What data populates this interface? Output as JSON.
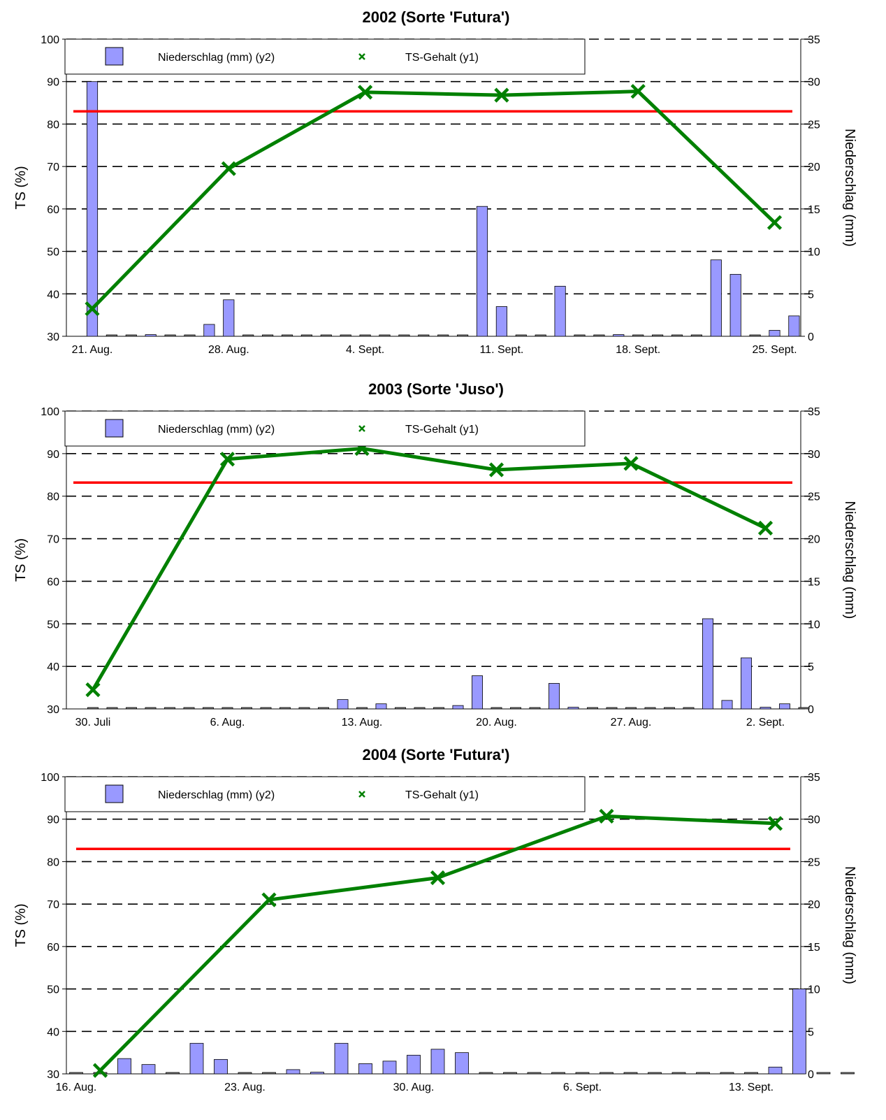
{
  "chart_data": [
    {
      "type": "bar+line",
      "title": "2002 (Sorte 'Futura')",
      "ylabel": "TS (%)",
      "y2label": "Niederschlag (mm)",
      "ylim": [
        30,
        100
      ],
      "y2lim": [
        0,
        35
      ],
      "yticks": [
        30,
        40,
        50,
        60,
        70,
        80,
        90,
        100
      ],
      "y2ticks": [
        0,
        5,
        10,
        15,
        20,
        25,
        30,
        35
      ],
      "grid": "dashed horizontal",
      "legend_position": "top",
      "legend": [
        "Niederschlag (mm) (y2)",
        "TS-Gehalt (y1)"
      ],
      "xticklabels": [
        {
          "label": "21. Aug.",
          "day": 0
        },
        {
          "label": "28. Aug.",
          "day": 7
        },
        {
          "label": "4. Sept.",
          "day": 14
        },
        {
          "label": "11. Sept.",
          "day": 21
        },
        {
          "label": "18. Sept.",
          "day": 28
        },
        {
          "label": "25. Sept.",
          "day": 35
        }
      ],
      "threshold": 83,
      "precipitation": [
        30,
        0,
        0,
        0.2,
        0,
        0,
        1.4,
        4.3,
        0,
        0,
        0,
        0,
        0,
        0,
        0,
        0,
        0,
        0,
        0,
        0,
        15.3,
        3.5,
        0,
        0,
        5.9,
        0,
        0,
        0.2,
        0,
        0,
        0,
        0,
        9,
        7.3,
        0,
        0.7,
        2.4
      ],
      "ts_gehalt": [
        {
          "day": 0,
          "value": 36.5
        },
        {
          "day": 7,
          "value": 69.5
        },
        {
          "day": 14,
          "value": 87.5
        },
        {
          "day": 21,
          "value": 86.8
        },
        {
          "day": 28,
          "value": 87.7
        },
        {
          "day": 35,
          "value": 56.8
        }
      ],
      "colors": {
        "bar": "#9999ff",
        "line": "#008000",
        "threshold": "#ff0000"
      }
    },
    {
      "type": "bar+line",
      "title": "2003 (Sorte 'Juso')",
      "ylabel": "TS (%)",
      "y2label": "Niederschlag (mm)",
      "ylim": [
        30,
        100
      ],
      "y2lim": [
        0,
        35
      ],
      "yticks": [
        30,
        40,
        50,
        60,
        70,
        80,
        90,
        100
      ],
      "y2ticks": [
        0,
        5,
        10,
        15,
        20,
        25,
        30,
        35
      ],
      "grid": "dashed horizontal",
      "legend_position": "top",
      "legend": [
        "Niederschlag (mm) (y2)",
        "TS-Gehalt (y1)"
      ],
      "xticklabels": [
        {
          "label": "30. Juli",
          "day": 0
        },
        {
          "label": "6. Aug.",
          "day": 7
        },
        {
          "label": "13. Aug.",
          "day": 14
        },
        {
          "label": "20. Aug.",
          "day": 21
        },
        {
          "label": "27. Aug.",
          "day": 28
        },
        {
          "label": "2. Sept.",
          "day": 35
        }
      ],
      "threshold": 83.2,
      "precipitation": [
        0,
        0,
        0,
        0,
        0,
        0,
        0,
        0,
        0,
        0,
        0,
        0,
        0,
        1.1,
        0,
        0.6,
        0,
        0,
        0,
        0.4,
        3.9,
        0,
        0,
        0,
        3,
        0.2,
        0,
        0,
        0,
        0,
        0,
        0,
        10.6,
        1,
        6,
        0.2,
        0.6,
        0
      ],
      "ts_gehalt": [
        {
          "day": 0,
          "value": 34.5
        },
        {
          "day": 7,
          "value": 88.7
        },
        {
          "day": 14,
          "value": 91.2
        },
        {
          "day": 21,
          "value": 86.2
        },
        {
          "day": 28,
          "value": 87.7
        },
        {
          "day": 35,
          "value": 72.5
        }
      ],
      "colors": {
        "bar": "#9999ff",
        "line": "#008000",
        "threshold": "#ff0000"
      }
    },
    {
      "type": "bar+line",
      "title": "2004 (Sorte 'Futura')",
      "ylabel": "TS (%)",
      "y2label": "Niederschlag (mm)",
      "ylim": [
        30,
        100
      ],
      "y2lim": [
        0,
        35
      ],
      "yticks": [
        30,
        40,
        50,
        60,
        70,
        80,
        90,
        100
      ],
      "y2ticks": [
        0,
        5,
        10,
        15,
        20,
        25,
        30,
        35
      ],
      "grid": "dashed horizontal",
      "legend_position": "top",
      "legend": [
        "Niederschlag (mm) (y2)",
        "TS-Gehalt (y1)"
      ],
      "xticklabels": [
        {
          "label": "16. Aug.",
          "day": 0
        },
        {
          "label": "23. Aug.",
          "day": 7
        },
        {
          "label": "30. Aug.",
          "day": 14
        },
        {
          "label": "6. Sept.",
          "day": 21
        },
        {
          "label": "13. Sept.",
          "day": 28
        }
      ],
      "threshold": 83,
      "precipitation": [
        0,
        0,
        1.8,
        1.1,
        0,
        3.6,
        1.7,
        0,
        0,
        0.5,
        0.2,
        3.6,
        1.2,
        1.5,
        2.2,
        2.9,
        2.5,
        0,
        0,
        0,
        0,
        0,
        0,
        0,
        0,
        0,
        0,
        0,
        0,
        0.8,
        10,
        0,
        0
      ],
      "ts_gehalt": [
        {
          "day": 1,
          "value": 30.8
        },
        {
          "day": 8,
          "value": 71
        },
        {
          "day": 15,
          "value": 76.2
        },
        {
          "day": 22,
          "value": 90.7
        },
        {
          "day": 29,
          "value": 89
        }
      ],
      "colors": {
        "bar": "#9999ff",
        "line": "#008000",
        "threshold": "#ff0000"
      }
    }
  ]
}
